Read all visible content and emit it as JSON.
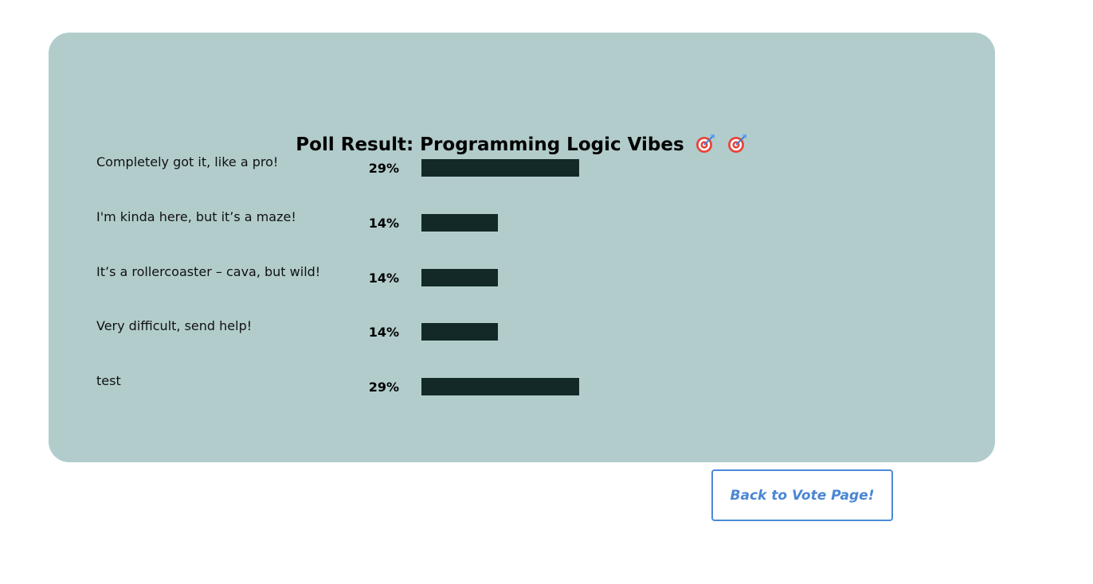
{
  "poll": {
    "title": "Poll Result: Programming Logic Vibes",
    "title_icons": [
      "target-dart-icon",
      "target-dart-icon"
    ],
    "bar_color": "#132928",
    "card_color": "#b2cccc",
    "options": [
      {
        "label": "Completely got it, like a pro!",
        "percent_text": "29%",
        "percent": 29
      },
      {
        "label": "I'm kinda here, but it’s a maze!",
        "percent_text": "14%",
        "percent": 14
      },
      {
        "label": "It’s a rollercoaster – cava, but wild!",
        "percent_text": "14%",
        "percent": 14
      },
      {
        "label": "Very difficult, send help!",
        "percent_text": "14%",
        "percent": 14
      },
      {
        "label": "test",
        "percent_text": "29%",
        "percent": 29
      }
    ]
  },
  "back_button": {
    "label": "Back to Vote Page!",
    "color": "#4a86d4"
  }
}
